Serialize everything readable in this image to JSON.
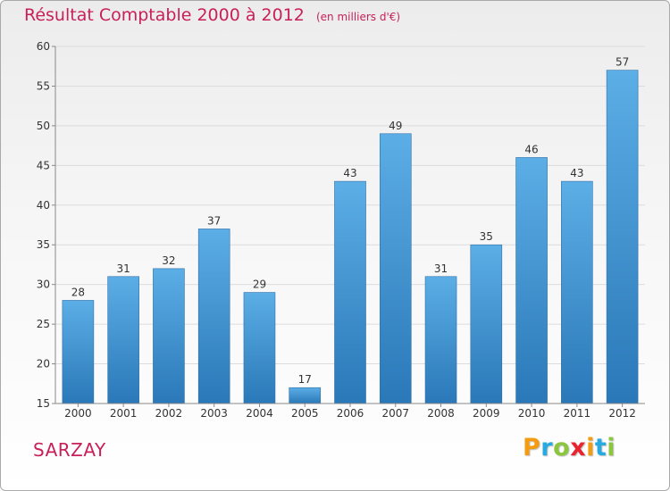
{
  "header": {
    "title": "Résultat Comptable 2000 à 2012",
    "subtitle": "(en milliers d'€)"
  },
  "footer": {
    "commune": "SARZAY",
    "logo_letters": [
      "P",
      "r",
      "o",
      "x",
      "i",
      "t",
      "i"
    ],
    "logo_colors": [
      "#f39c12",
      "#27a9e1",
      "#8cc63f",
      "#e8252f",
      "#f39c12",
      "#27a9e1",
      "#8cc63f"
    ]
  },
  "colors": {
    "bar_top": "#5caee6",
    "bar_bottom": "#2a78b8",
    "title": "#c8205a",
    "grid": "#dcdcdc",
    "axis": "#888888",
    "text": "#333333"
  },
  "chart_data": {
    "type": "bar",
    "title": "Résultat Comptable 2000 à 2012",
    "subtitle": "(en milliers d'€)",
    "xlabel": "",
    "ylabel": "",
    "categories": [
      "2000",
      "2001",
      "2002",
      "2003",
      "2004",
      "2005",
      "2006",
      "2007",
      "2008",
      "2009",
      "2010",
      "2011",
      "2012"
    ],
    "values": [
      28,
      31,
      32,
      37,
      29,
      17,
      43,
      49,
      31,
      35,
      46,
      43,
      57
    ],
    "ylim": [
      15,
      60
    ],
    "yticks": [
      15,
      20,
      25,
      30,
      35,
      40,
      45,
      50,
      55,
      60
    ],
    "grid": true,
    "legend": "none"
  }
}
